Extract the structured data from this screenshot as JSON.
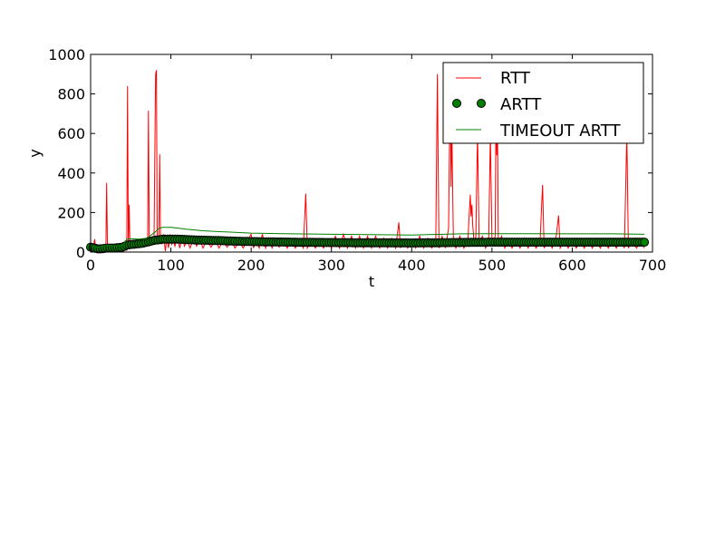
{
  "chart_data": {
    "type": "line",
    "xlabel": "t",
    "ylabel": "y",
    "xlim": [
      0,
      700
    ],
    "ylim": [
      0,
      1000
    ],
    "xticks": [
      "0",
      "100",
      "200",
      "300",
      "400",
      "500",
      "600",
      "700"
    ],
    "yticks": [
      "0",
      "200",
      "400",
      "600",
      "800",
      "1000"
    ],
    "grid": false,
    "legend_position": "top-right",
    "series": [
      {
        "name": "RTT",
        "style": "line",
        "color": "#ff0000",
        "points": [
          [
            0,
            20
          ],
          [
            3,
            10
          ],
          [
            5,
            65
          ],
          [
            7,
            5
          ],
          [
            9,
            30
          ],
          [
            11,
            5
          ],
          [
            13,
            25
          ],
          [
            15,
            8
          ],
          [
            17,
            20
          ],
          [
            19,
            5
          ],
          [
            20,
            350
          ],
          [
            21,
            10
          ],
          [
            23,
            30
          ],
          [
            25,
            5
          ],
          [
            27,
            20
          ],
          [
            29,
            10
          ],
          [
            31,
            25
          ],
          [
            33,
            5
          ],
          [
            35,
            15
          ],
          [
            37,
            10
          ],
          [
            39,
            30
          ],
          [
            41,
            5
          ],
          [
            43,
            20
          ],
          [
            45,
            10
          ],
          [
            46,
            840
          ],
          [
            47,
            30
          ],
          [
            48,
            240
          ],
          [
            49,
            20
          ],
          [
            51,
            30
          ],
          [
            53,
            40
          ],
          [
            55,
            20
          ],
          [
            57,
            35
          ],
          [
            59,
            25
          ],
          [
            61,
            40
          ],
          [
            63,
            30
          ],
          [
            65,
            45
          ],
          [
            67,
            35
          ],
          [
            69,
            50
          ],
          [
            71,
            40
          ],
          [
            72,
            715
          ],
          [
            73,
            50
          ],
          [
            75,
            60
          ],
          [
            77,
            70
          ],
          [
            79,
            80
          ],
          [
            81,
            900
          ],
          [
            82,
            920
          ],
          [
            83,
            60
          ],
          [
            85,
            90
          ],
          [
            86,
            495
          ],
          [
            87,
            80
          ],
          [
            89,
            40
          ],
          [
            91,
            90
          ],
          [
            93,
            5
          ],
          [
            95,
            70
          ],
          [
            97,
            20
          ],
          [
            99,
            90
          ],
          [
            101,
            40
          ],
          [
            103,
            60
          ],
          [
            105,
            30
          ],
          [
            108,
            80
          ],
          [
            111,
            20
          ],
          [
            114,
            70
          ],
          [
            117,
            30
          ],
          [
            120,
            60
          ],
          [
            124,
            20
          ],
          [
            128,
            70
          ],
          [
            132,
            30
          ],
          [
            136,
            65
          ],
          [
            140,
            20
          ],
          [
            145,
            60
          ],
          [
            150,
            25
          ],
          [
            155,
            60
          ],
          [
            160,
            20
          ],
          [
            165,
            55
          ],
          [
            170,
            25
          ],
          [
            175,
            55
          ],
          [
            180,
            20
          ],
          [
            185,
            55
          ],
          [
            190,
            20
          ],
          [
            195,
            55
          ],
          [
            200,
            90
          ],
          [
            203,
            20
          ],
          [
            206,
            60
          ],
          [
            210,
            20
          ],
          [
            214,
            90
          ],
          [
            218,
            20
          ],
          [
            222,
            70
          ],
          [
            226,
            20
          ],
          [
            230,
            60
          ],
          [
            235,
            25
          ],
          [
            240,
            60
          ],
          [
            245,
            20
          ],
          [
            250,
            60
          ],
          [
            255,
            20
          ],
          [
            260,
            60
          ],
          [
            265,
            20
          ],
          [
            268,
            295
          ],
          [
            270,
            20
          ],
          [
            275,
            60
          ],
          [
            280,
            20
          ],
          [
            285,
            60
          ],
          [
            290,
            20
          ],
          [
            295,
            60
          ],
          [
            300,
            20
          ],
          [
            305,
            80
          ],
          [
            310,
            20
          ],
          [
            315,
            90
          ],
          [
            320,
            20
          ],
          [
            325,
            80
          ],
          [
            330,
            20
          ],
          [
            335,
            80
          ],
          [
            340,
            20
          ],
          [
            345,
            80
          ],
          [
            350,
            20
          ],
          [
            355,
            80
          ],
          [
            360,
            20
          ],
          [
            365,
            70
          ],
          [
            370,
            20
          ],
          [
            375,
            70
          ],
          [
            380,
            20
          ],
          [
            384,
            150
          ],
          [
            386,
            20
          ],
          [
            390,
            60
          ],
          [
            395,
            20
          ],
          [
            400,
            60
          ],
          [
            405,
            20
          ],
          [
            410,
            80
          ],
          [
            415,
            20
          ],
          [
            420,
            70
          ],
          [
            425,
            20
          ],
          [
            430,
            60
          ],
          [
            432,
            900
          ],
          [
            434,
            20
          ],
          [
            438,
            80
          ],
          [
            442,
            20
          ],
          [
            446,
            120
          ],
          [
            448,
            890
          ],
          [
            449,
            330
          ],
          [
            450,
            620
          ],
          [
            452,
            60
          ],
          [
            455,
            20
          ],
          [
            460,
            80
          ],
          [
            465,
            20
          ],
          [
            470,
            60
          ],
          [
            473,
            290
          ],
          [
            474,
            180
          ],
          [
            475,
            240
          ],
          [
            476,
            140
          ],
          [
            478,
            30
          ],
          [
            480,
            80
          ],
          [
            482,
            610
          ],
          [
            484,
            40
          ],
          [
            488,
            80
          ],
          [
            492,
            20
          ],
          [
            496,
            70
          ],
          [
            498,
            600
          ],
          [
            500,
            40
          ],
          [
            504,
            80
          ],
          [
            505,
            720
          ],
          [
            506,
            490
          ],
          [
            507,
            560
          ],
          [
            508,
            40
          ],
          [
            512,
            80
          ],
          [
            516,
            20
          ],
          [
            520,
            60
          ],
          [
            525,
            20
          ],
          [
            530,
            60
          ],
          [
            535,
            20
          ],
          [
            540,
            70
          ],
          [
            545,
            20
          ],
          [
            550,
            60
          ],
          [
            555,
            20
          ],
          [
            560,
            60
          ],
          [
            563,
            340
          ],
          [
            565,
            20
          ],
          [
            570,
            60
          ],
          [
            575,
            20
          ],
          [
            580,
            80
          ],
          [
            583,
            185
          ],
          [
            585,
            20
          ],
          [
            590,
            60
          ],
          [
            595,
            20
          ],
          [
            600,
            60
          ],
          [
            605,
            20
          ],
          [
            610,
            60
          ],
          [
            615,
            20
          ],
          [
            620,
            60
          ],
          [
            625,
            20
          ],
          [
            630,
            60
          ],
          [
            635,
            20
          ],
          [
            640,
            60
          ],
          [
            645,
            20
          ],
          [
            650,
            60
          ],
          [
            655,
            20
          ],
          [
            660,
            60
          ],
          [
            665,
            20
          ],
          [
            668,
            600
          ],
          [
            670,
            20
          ],
          [
            675,
            60
          ],
          [
            680,
            20
          ],
          [
            685,
            50
          ],
          [
            690,
            20
          ]
        ]
      },
      {
        "name": "ARTT",
        "style": "markers",
        "color": "#008000",
        "points": [
          [
            0,
            25
          ],
          [
            10,
            15
          ],
          [
            20,
            20
          ],
          [
            30,
            20
          ],
          [
            40,
            25
          ],
          [
            45,
            35
          ],
          [
            50,
            38
          ],
          [
            55,
            40
          ],
          [
            60,
            42
          ],
          [
            65,
            45
          ],
          [
            70,
            50
          ],
          [
            75,
            55
          ],
          [
            80,
            60
          ],
          [
            85,
            62
          ],
          [
            90,
            65
          ],
          [
            100,
            65
          ],
          [
            110,
            65
          ],
          [
            120,
            63
          ],
          [
            140,
            60
          ],
          [
            160,
            58
          ],
          [
            180,
            55
          ],
          [
            200,
            53
          ],
          [
            250,
            50
          ],
          [
            300,
            48
          ],
          [
            350,
            47
          ],
          [
            400,
            46
          ],
          [
            450,
            48
          ],
          [
            500,
            50
          ],
          [
            550,
            50
          ],
          [
            600,
            50
          ],
          [
            650,
            50
          ],
          [
            690,
            50
          ]
        ]
      },
      {
        "name": "TIMEOUT ARTT",
        "style": "line",
        "color": "#008000",
        "points": [
          [
            0,
            30
          ],
          [
            10,
            25
          ],
          [
            20,
            35
          ],
          [
            30,
            30
          ],
          [
            40,
            35
          ],
          [
            45,
            65
          ],
          [
            50,
            68
          ],
          [
            60,
            65
          ],
          [
            70,
            70
          ],
          [
            75,
            85
          ],
          [
            80,
            100
          ],
          [
            85,
            120
          ],
          [
            90,
            125
          ],
          [
            100,
            125
          ],
          [
            110,
            120
          ],
          [
            120,
            115
          ],
          [
            140,
            108
          ],
          [
            160,
            103
          ],
          [
            180,
            100
          ],
          [
            200,
            96
          ],
          [
            250,
            92
          ],
          [
            300,
            90
          ],
          [
            350,
            88
          ],
          [
            400,
            86
          ],
          [
            420,
            88
          ],
          [
            440,
            90
          ],
          [
            460,
            92
          ],
          [
            500,
            93
          ],
          [
            550,
            93
          ],
          [
            600,
            92
          ],
          [
            650,
            92
          ],
          [
            690,
            90
          ]
        ]
      }
    ]
  }
}
